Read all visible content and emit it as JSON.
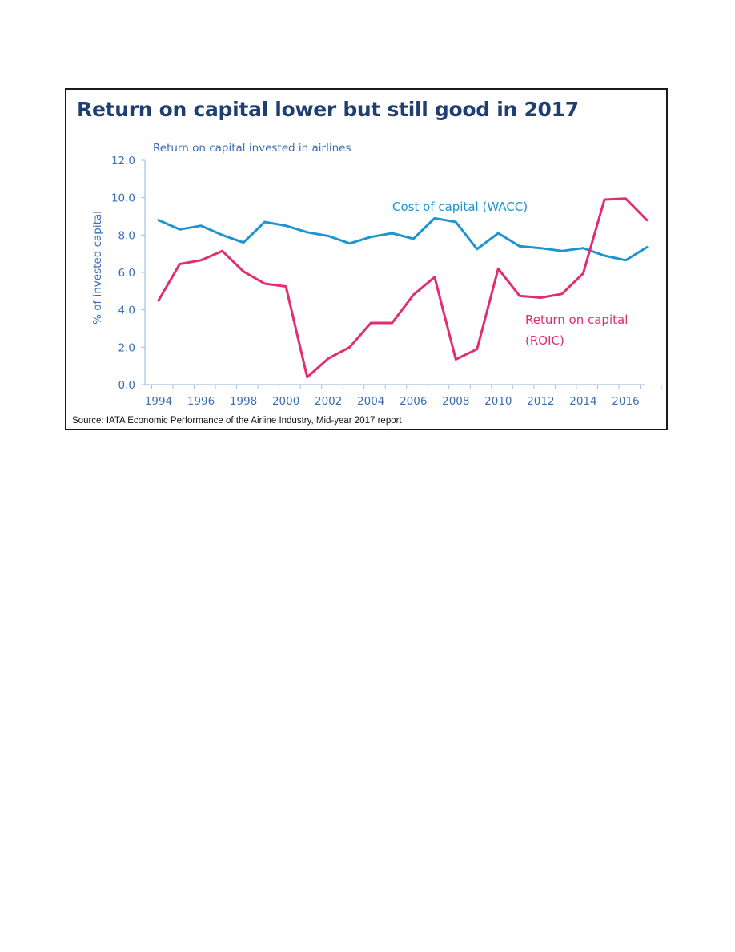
{
  "chart_data": {
    "type": "line",
    "title": "Return on capital lower but still good in 2017",
    "subtitle": "Return on capital invested in airlines",
    "ylabel": "% of invested capital",
    "xlabel": "",
    "ylim": [
      0,
      12
    ],
    "yticks": [
      "0.0",
      "2.0",
      "4.0",
      "6.0",
      "8.0",
      "10.0",
      "12.0"
    ],
    "xlim": [
      1994,
      2017
    ],
    "xticks": [
      "1994",
      "1996",
      "1998",
      "2000",
      "2002",
      "2004",
      "2006",
      "2008",
      "2010",
      "2012",
      "2014",
      "2016"
    ],
    "x": [
      1994,
      1995,
      1996,
      1997,
      1998,
      1999,
      2000,
      2001,
      2002,
      2003,
      2004,
      2005,
      2006,
      2007,
      2008,
      2009,
      2010,
      2011,
      2012,
      2013,
      2014,
      2015,
      2016,
      2017
    ],
    "series": [
      {
        "name": "Cost of capital (WACC)",
        "color": "#1f95d0",
        "values": [
          8.8,
          8.3,
          8.5,
          8.0,
          7.6,
          8.7,
          8.5,
          8.15,
          7.95,
          7.55,
          7.9,
          8.1,
          7.8,
          8.9,
          8.7,
          7.25,
          8.1,
          7.4,
          7.3,
          7.15,
          7.3,
          6.9,
          6.65,
          7.35
        ]
      },
      {
        "name": "Return on capital\n(ROIC)",
        "color": "#e22d72",
        "values": [
          4.5,
          6.45,
          6.65,
          7.15,
          6.05,
          5.4,
          5.25,
          0.4,
          1.4,
          2.0,
          3.3,
          3.3,
          4.8,
          5.75,
          1.35,
          1.9,
          6.2,
          4.75,
          4.65,
          4.85,
          5.95,
          9.9,
          9.95,
          8.8
        ]
      }
    ],
    "annotations": {
      "wacc_label": "Cost of capital (WACC)",
      "roic_label_line1": "Return on capital",
      "roic_label_line2": "(ROIC)"
    },
    "grid": false,
    "legend": "inline labels"
  },
  "source": "Source: IATA Economic Performance of the Airline Industry, Mid-year 2017 report",
  "colors": {
    "title": "#1f3f73",
    "axis_text": "#3a70b3",
    "axis_line": "#a7c2dd"
  }
}
